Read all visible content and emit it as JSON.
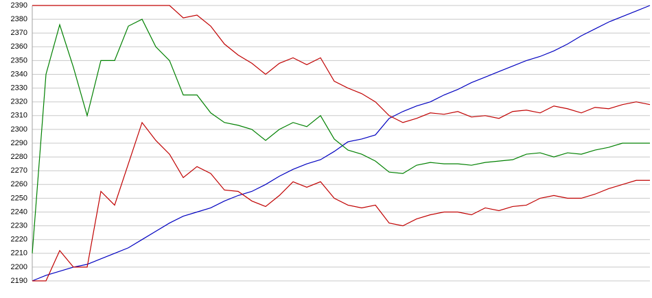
{
  "chart_data": {
    "type": "line",
    "categories": [
      null,
      null,
      null,
      null,
      null,
      null,
      null,
      null,
      null,
      null,
      null,
      null,
      null,
      null,
      null,
      null,
      null,
      null,
      null,
      null,
      null,
      null,
      null,
      null,
      null,
      null,
      null,
      null,
      null,
      null,
      null,
      null,
      null,
      null,
      null,
      null,
      null,
      null,
      null,
      null,
      null,
      null,
      null,
      null,
      null,
      null
    ],
    "series": [
      {
        "color": "#0000c0",
        "values": [
          2190,
          2194,
          2197,
          2200,
          2202,
          2206,
          2210,
          2214,
          2220,
          2226,
          2232,
          2237,
          2240,
          2243,
          2248,
          2252,
          2255,
          2260,
          2266,
          2271,
          2275,
          2278,
          2284,
          2291,
          2293,
          2296,
          2308,
          2313,
          2317,
          2320,
          2325,
          2329,
          2334,
          2338,
          2342,
          2346,
          2350,
          2353,
          2357,
          2362,
          2368,
          2373,
          2378,
          2382,
          2386,
          2390
        ]
      },
      {
        "color": "#008000",
        "values": [
          2210,
          2340,
          2376,
          2345,
          2310,
          2350,
          2350,
          2375,
          2380,
          2360,
          2350,
          2325,
          2325,
          2312,
          2305,
          2303,
          2300,
          2292,
          2300,
          2305,
          2302,
          2310,
          2293,
          2285,
          2282,
          2277,
          2269,
          2268,
          2274,
          2276,
          2275,
          2275,
          2274,
          2276,
          2277,
          2278,
          2282,
          2283,
          2280,
          2283,
          2282,
          2285,
          2287,
          2290,
          2290,
          2290
        ]
      },
      {
        "color": "#c00000",
        "values": [
          2390,
          2390,
          2390,
          2390,
          2390,
          2390,
          2390,
          2390,
          2390,
          2390,
          2390,
          2381,
          2383,
          2375,
          2362,
          2354,
          2348,
          2340,
          2348,
          2352,
          2347,
          2352,
          2335,
          2330,
          2326,
          2320,
          2310,
          2305,
          2308,
          2312,
          2311,
          2313,
          2309,
          2310,
          2308,
          2313,
          2314,
          2312,
          2317,
          2315,
          2312,
          2316,
          2315,
          2318,
          2320,
          2318
        ]
      },
      {
        "color": "#c00000",
        "values": [
          2190,
          2190,
          2212,
          2200,
          2200,
          2255,
          2245,
          2275,
          2305,
          2292,
          2282,
          2265,
          2273,
          2268,
          2256,
          2255,
          2248,
          2244,
          2252,
          2262,
          2258,
          2262,
          2250,
          2245,
          2243,
          2245,
          2232,
          2230,
          2235,
          2238,
          2240,
          2240,
          2238,
          2243,
          2241,
          2244,
          2245,
          2250,
          2252,
          2250,
          2250,
          2253,
          2257,
          2260,
          2263,
          2263
        ]
      }
    ],
    "ylim": [
      2190,
      2390
    ],
    "yticks": [
      2190,
      2200,
      2210,
      2220,
      2230,
      2240,
      2250,
      2260,
      2270,
      2280,
      2290,
      2300,
      2310,
      2320,
      2330,
      2340,
      2350,
      2360,
      2370,
      2380,
      2390
    ],
    "grid": true
  }
}
